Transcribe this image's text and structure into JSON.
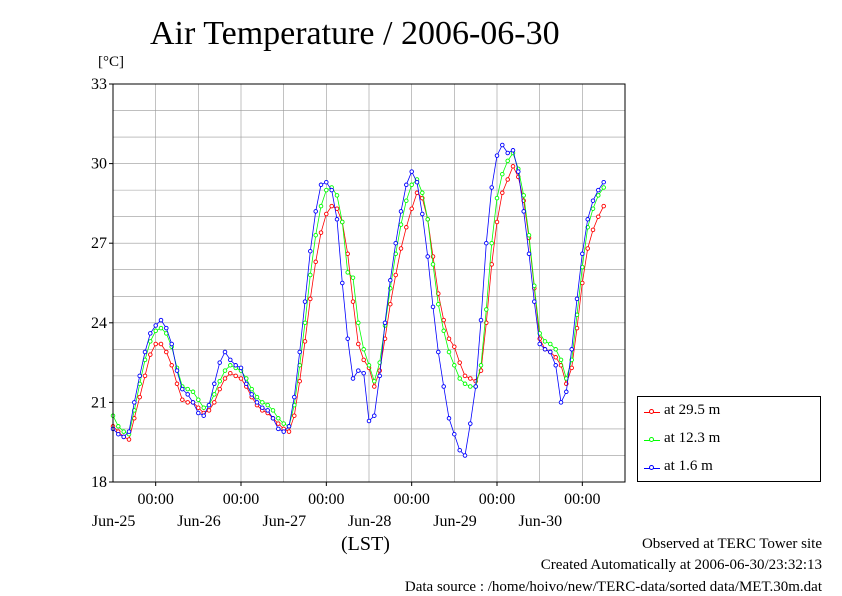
{
  "title": "Air Temperature / 2006-06-30",
  "unit_label": "[°C]",
  "xaxis_note": "(LST)",
  "footer": {
    "observed": "Observed at TERC Tower site",
    "created": "Created Automatically at 2006-06-30/23:32:13",
    "source": "Data source : /home/hoivo/new/TERC-data/sorted  data/MET.30m.dat"
  },
  "chart_data": {
    "type": "line",
    "title": "Air Temperature / 2006-06-30",
    "ylabel": "[°C]",
    "xlabel": "(LST)",
    "ylim": [
      18,
      33
    ],
    "yticks": [
      18,
      21,
      24,
      27,
      30,
      33
    ],
    "x_range": [
      "Jun-24 12:00",
      "Jun-30 12:00"
    ],
    "x_tick_labels": [
      {
        "time": "00:00",
        "date": "Jun-25"
      },
      {
        "time": "00:00",
        "date": "Jun-26"
      },
      {
        "time": "00:00",
        "date": "Jun-27"
      },
      {
        "time": "00:00",
        "date": "Jun-28"
      },
      {
        "time": "00:00",
        "date": "Jun-29"
      },
      {
        "time": "00:00",
        "date": "Jun-30"
      }
    ],
    "grid": true,
    "legend_position": "lower-right-outside",
    "x_unit": "hours since Jun-24 12:00 LST",
    "series": [
      {
        "name": "at 29.5 m",
        "color": "#ff0000",
        "points": [
          [
            0,
            20.1
          ],
          [
            1.5,
            19.9
          ],
          [
            3,
            19.7
          ],
          [
            4.5,
            19.6
          ],
          [
            6,
            20.4
          ],
          [
            7.5,
            21.2
          ],
          [
            9,
            22.0
          ],
          [
            10.5,
            22.8
          ],
          [
            12,
            23.2
          ],
          [
            13.5,
            23.2
          ],
          [
            15,
            22.9
          ],
          [
            16.5,
            22.4
          ],
          [
            18,
            21.7
          ],
          [
            19.5,
            21.1
          ],
          [
            21,
            21.0
          ],
          [
            22.5,
            21.0
          ],
          [
            24,
            20.8
          ],
          [
            25.5,
            20.6
          ],
          [
            27,
            20.7
          ],
          [
            28.5,
            21.0
          ],
          [
            30,
            21.5
          ],
          [
            31.5,
            21.9
          ],
          [
            33,
            22.1
          ],
          [
            34.5,
            22.0
          ],
          [
            36,
            21.9
          ],
          [
            37.5,
            21.6
          ],
          [
            39,
            21.2
          ],
          [
            40.5,
            20.9
          ],
          [
            42,
            20.7
          ],
          [
            43.5,
            20.6
          ],
          [
            45,
            20.4
          ],
          [
            46.5,
            20.2
          ],
          [
            48,
            20.0
          ],
          [
            49.5,
            19.9
          ],
          [
            51,
            20.5
          ],
          [
            52.5,
            21.8
          ],
          [
            54,
            23.3
          ],
          [
            55.5,
            24.9
          ],
          [
            57,
            26.3
          ],
          [
            58.5,
            27.4
          ],
          [
            60,
            28.1
          ],
          [
            61.5,
            28.4
          ],
          [
            63,
            28.3
          ],
          [
            64.5,
            27.8
          ],
          [
            66,
            26.6
          ],
          [
            67.5,
            24.8
          ],
          [
            69,
            23.2
          ],
          [
            70.5,
            22.6
          ],
          [
            72,
            22.3
          ],
          [
            73.5,
            21.6
          ],
          [
            75,
            22.2
          ],
          [
            76.5,
            23.4
          ],
          [
            78,
            24.7
          ],
          [
            79.5,
            25.8
          ],
          [
            81,
            26.8
          ],
          [
            82.5,
            27.6
          ],
          [
            84,
            28.3
          ],
          [
            85.5,
            28.9
          ],
          [
            87,
            28.7
          ],
          [
            88.5,
            27.9
          ],
          [
            90,
            26.5
          ],
          [
            91.5,
            25.1
          ],
          [
            93,
            24.1
          ],
          [
            94.5,
            23.4
          ],
          [
            96,
            23.1
          ],
          [
            97.5,
            22.5
          ],
          [
            99,
            22.0
          ],
          [
            100.5,
            21.9
          ],
          [
            102,
            21.8
          ],
          [
            103.5,
            22.2
          ],
          [
            105,
            24.0
          ],
          [
            106.5,
            26.2
          ],
          [
            108,
            27.8
          ],
          [
            109.5,
            28.9
          ],
          [
            111,
            29.4
          ],
          [
            112.5,
            29.9
          ],
          [
            114,
            29.5
          ],
          [
            115.5,
            28.6
          ],
          [
            117,
            27.2
          ],
          [
            118.5,
            25.3
          ],
          [
            120,
            23.4
          ],
          [
            121.5,
            23.0
          ],
          [
            123,
            22.9
          ],
          [
            124.5,
            22.7
          ],
          [
            126,
            22.4
          ],
          [
            127.5,
            21.7
          ],
          [
            129,
            22.3
          ],
          [
            130.5,
            23.8
          ],
          [
            132,
            25.5
          ],
          [
            133.5,
            26.8
          ],
          [
            135,
            27.5
          ],
          [
            136.5,
            28.0
          ],
          [
            138,
            28.4
          ]
        ]
      },
      {
        "name": "at 12.3 m",
        "color": "#00ff00",
        "points": [
          [
            0,
            20.5
          ],
          [
            1.5,
            20.1
          ],
          [
            3,
            19.9
          ],
          [
            4.5,
            19.8
          ],
          [
            6,
            20.7
          ],
          [
            7.5,
            21.7
          ],
          [
            9,
            22.6
          ],
          [
            10.5,
            23.3
          ],
          [
            12,
            23.7
          ],
          [
            13.5,
            23.8
          ],
          [
            15,
            23.6
          ],
          [
            16.5,
            23.1
          ],
          [
            18,
            22.3
          ],
          [
            19.5,
            21.6
          ],
          [
            21,
            21.5
          ],
          [
            22.5,
            21.4
          ],
          [
            24,
            21.1
          ],
          [
            25.5,
            20.8
          ],
          [
            27,
            20.9
          ],
          [
            28.5,
            21.3
          ],
          [
            30,
            21.8
          ],
          [
            31.5,
            22.2
          ],
          [
            33,
            22.4
          ],
          [
            34.5,
            22.3
          ],
          [
            36,
            22.2
          ],
          [
            37.5,
            21.9
          ],
          [
            39,
            21.5
          ],
          [
            40.5,
            21.2
          ],
          [
            42,
            21.0
          ],
          [
            43.5,
            20.9
          ],
          [
            45,
            20.7
          ],
          [
            46.5,
            20.4
          ],
          [
            48,
            20.2
          ],
          [
            49.5,
            20.1
          ],
          [
            51,
            20.9
          ],
          [
            52.5,
            22.4
          ],
          [
            54,
            24.0
          ],
          [
            55.5,
            25.8
          ],
          [
            57,
            27.3
          ],
          [
            58.5,
            28.4
          ],
          [
            60,
            29.0
          ],
          [
            61.5,
            29.1
          ],
          [
            63,
            28.8
          ],
          [
            64.5,
            27.8
          ],
          [
            66,
            25.9
          ],
          [
            67.5,
            25.7
          ],
          [
            69,
            24.0
          ],
          [
            70.5,
            23.0
          ],
          [
            72,
            22.4
          ],
          [
            73.5,
            21.8
          ],
          [
            75,
            22.5
          ],
          [
            76.5,
            23.9
          ],
          [
            78,
            25.3
          ],
          [
            79.5,
            26.6
          ],
          [
            81,
            27.7
          ],
          [
            82.5,
            28.6
          ],
          [
            84,
            29.2
          ],
          [
            85.5,
            29.4
          ],
          [
            87,
            28.9
          ],
          [
            88.5,
            27.9
          ],
          [
            90,
            26.2
          ],
          [
            91.5,
            24.7
          ],
          [
            93,
            23.7
          ],
          [
            94.5,
            22.9
          ],
          [
            96,
            22.4
          ],
          [
            97.5,
            21.9
          ],
          [
            99,
            21.7
          ],
          [
            100.5,
            21.6
          ],
          [
            102,
            21.6
          ],
          [
            103.5,
            22.4
          ],
          [
            105,
            24.5
          ],
          [
            106.5,
            27.0
          ],
          [
            108,
            28.7
          ],
          [
            109.5,
            29.6
          ],
          [
            111,
            30.1
          ],
          [
            112.5,
            30.4
          ],
          [
            114,
            29.8
          ],
          [
            115.5,
            28.8
          ],
          [
            117,
            27.3
          ],
          [
            118.5,
            25.4
          ],
          [
            120,
            23.6
          ],
          [
            121.5,
            23.3
          ],
          [
            123,
            23.2
          ],
          [
            124.5,
            23.0
          ],
          [
            126,
            22.6
          ],
          [
            127.5,
            21.9
          ],
          [
            129,
            22.6
          ],
          [
            130.5,
            24.3
          ],
          [
            132,
            26.1
          ],
          [
            133.5,
            27.6
          ],
          [
            135,
            28.3
          ],
          [
            136.5,
            28.8
          ],
          [
            138,
            29.1
          ]
        ]
      },
      {
        "name": "at 1.6 m",
        "color": "#0000ff",
        "points": [
          [
            0,
            20.0
          ],
          [
            1.5,
            19.8
          ],
          [
            3,
            19.7
          ],
          [
            4.5,
            19.9
          ],
          [
            6,
            21.0
          ],
          [
            7.5,
            22.0
          ],
          [
            9,
            22.9
          ],
          [
            10.5,
            23.6
          ],
          [
            12,
            23.9
          ],
          [
            13.5,
            24.1
          ],
          [
            15,
            23.8
          ],
          [
            16.5,
            23.2
          ],
          [
            18,
            22.2
          ],
          [
            19.5,
            21.5
          ],
          [
            21,
            21.3
          ],
          [
            22.5,
            21.0
          ],
          [
            24,
            20.6
          ],
          [
            25.5,
            20.5
          ],
          [
            27,
            20.9
          ],
          [
            28.5,
            21.7
          ],
          [
            30,
            22.5
          ],
          [
            31.5,
            22.9
          ],
          [
            33,
            22.6
          ],
          [
            34.5,
            22.4
          ],
          [
            36,
            22.3
          ],
          [
            37.5,
            21.7
          ],
          [
            39,
            21.3
          ],
          [
            40.5,
            21.0
          ],
          [
            42,
            20.8
          ],
          [
            43.5,
            20.7
          ],
          [
            45,
            20.4
          ],
          [
            46.5,
            20.0
          ],
          [
            48,
            19.9
          ],
          [
            49.5,
            20.1
          ],
          [
            51,
            21.2
          ],
          [
            52.5,
            22.9
          ],
          [
            54,
            24.8
          ],
          [
            55.5,
            26.7
          ],
          [
            57,
            28.2
          ],
          [
            58.5,
            29.2
          ],
          [
            60,
            29.3
          ],
          [
            61.5,
            29.0
          ],
          [
            63,
            27.9
          ],
          [
            64.5,
            25.5
          ],
          [
            66,
            23.4
          ],
          [
            67.5,
            21.9
          ],
          [
            69,
            22.2
          ],
          [
            70.5,
            22.1
          ],
          [
            72,
            20.3
          ],
          [
            73.5,
            20.5
          ],
          [
            75,
            22.0
          ],
          [
            76.5,
            24.0
          ],
          [
            78,
            25.6
          ],
          [
            79.5,
            27.0
          ],
          [
            81,
            28.2
          ],
          [
            82.5,
            29.2
          ],
          [
            84,
            29.7
          ],
          [
            85.5,
            29.3
          ],
          [
            87,
            28.1
          ],
          [
            88.5,
            26.5
          ],
          [
            90,
            24.6
          ],
          [
            91.5,
            22.9
          ],
          [
            93,
            21.6
          ],
          [
            94.5,
            20.4
          ],
          [
            96,
            19.8
          ],
          [
            97.5,
            19.2
          ],
          [
            99,
            19.0
          ],
          [
            100.5,
            20.2
          ],
          [
            102,
            21.6
          ],
          [
            103.5,
            24.1
          ],
          [
            105,
            27.0
          ],
          [
            106.5,
            29.1
          ],
          [
            108,
            30.3
          ],
          [
            109.5,
            30.7
          ],
          [
            111,
            30.4
          ],
          [
            112.5,
            30.5
          ],
          [
            114,
            29.7
          ],
          [
            115.5,
            28.2
          ],
          [
            117,
            26.6
          ],
          [
            118.5,
            24.8
          ],
          [
            120,
            23.2
          ],
          [
            121.5,
            23.0
          ],
          [
            123,
            22.9
          ],
          [
            124.5,
            22.4
          ],
          [
            126,
            21.0
          ],
          [
            127.5,
            21.4
          ],
          [
            129,
            23.0
          ],
          [
            130.5,
            24.9
          ],
          [
            132,
            26.6
          ],
          [
            133.5,
            27.9
          ],
          [
            135,
            28.6
          ],
          [
            136.5,
            29.0
          ],
          [
            138,
            29.3
          ]
        ]
      }
    ]
  }
}
